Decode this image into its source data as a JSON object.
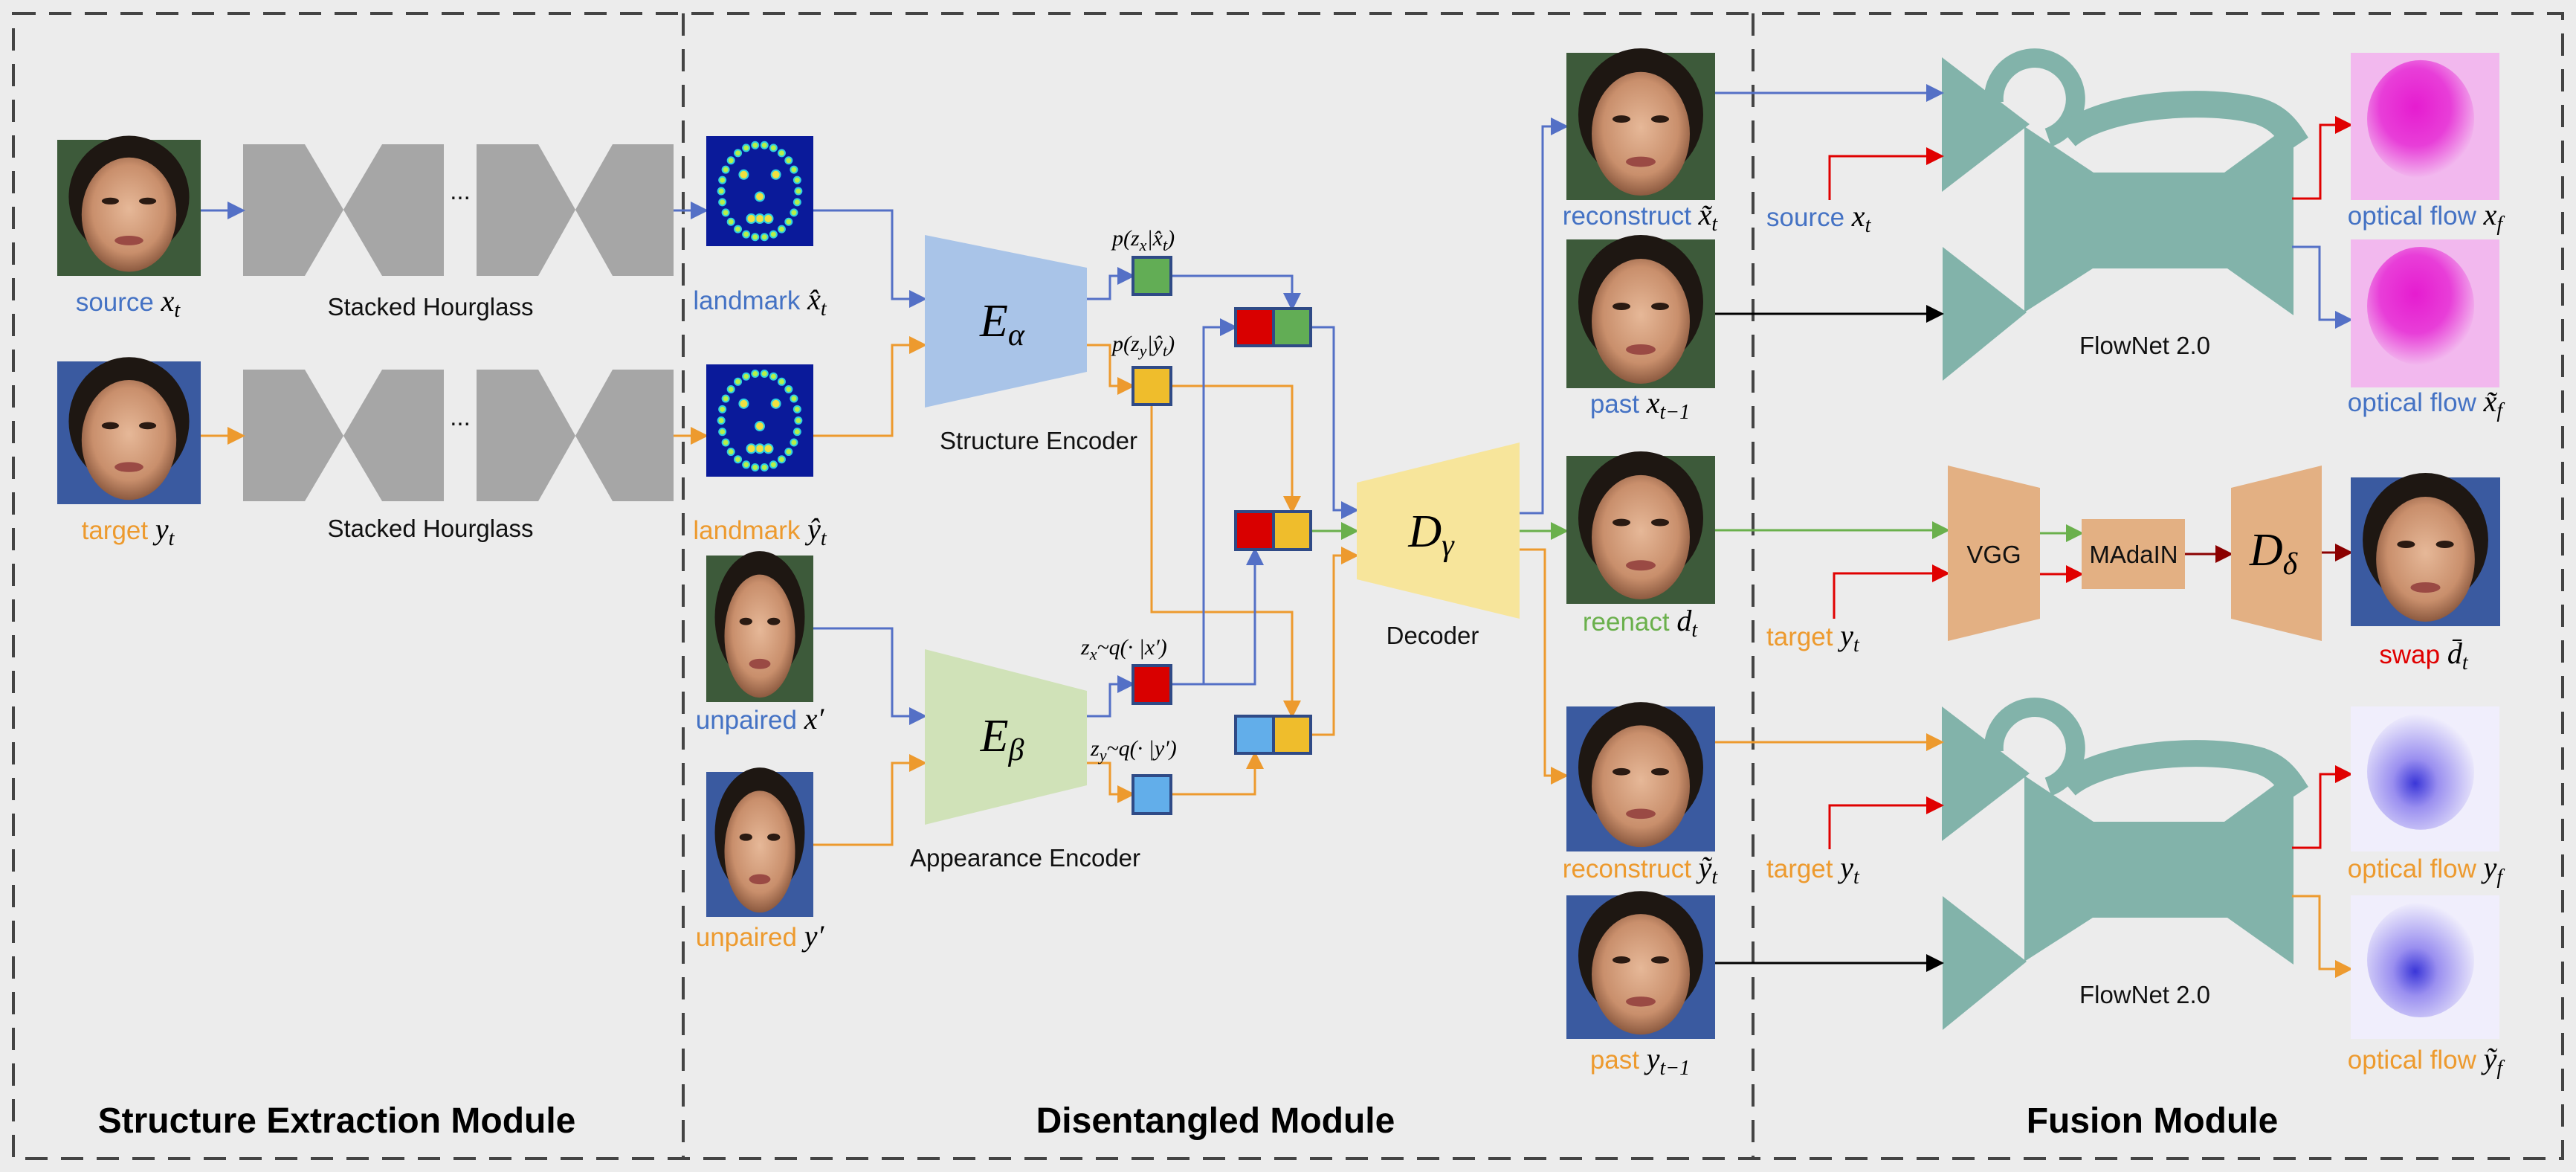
{
  "colors": {
    "blue": "#4472c4",
    "orange": "#ed9a2e",
    "green": "#6ab04c",
    "red": "#e00000",
    "flownet": "#82b3aa",
    "vgg": "#e3b083",
    "encoder_alpha": "#a9c4e8",
    "encoder_beta": "#d0e2b8",
    "decoder": "#f7e59b",
    "background": "#ececec"
  },
  "sections": {
    "structure": "Structure Extraction Module",
    "disentangled": "Disentangled Module",
    "fusion": "Fusion Module"
  },
  "structure": {
    "source": {
      "word": "source",
      "var": "x",
      "sub": "t"
    },
    "target": {
      "word": "target",
      "var": "y",
      "sub": "t"
    },
    "hourglass_label": "Stacked Hourglass",
    "ellipsis": "..."
  },
  "disentangled": {
    "landmark_x": {
      "word": "landmark",
      "var": "x̂",
      "sub": "t"
    },
    "landmark_y": {
      "word": "landmark",
      "var": "ŷ",
      "sub": "t"
    },
    "unpaired_x": {
      "word": "unpaired",
      "var": "x′"
    },
    "unpaired_y": {
      "word": "unpaired",
      "var": "y′"
    },
    "e_alpha": {
      "var": "E",
      "sub": "α"
    },
    "e_beta": {
      "var": "E",
      "sub": "β"
    },
    "d_gamma": {
      "var": "D",
      "sub": "γ"
    },
    "structure_encoder": "Structure Encoder",
    "appearance_encoder": "Appearance Encoder",
    "decoder": "Decoder",
    "p_zx": {
      "a": "p(z",
      "s1": "x",
      "b": "|x̂",
      "s2": "t",
      "c": ")"
    },
    "p_zy": {
      "a": "p(z",
      "s1": "y",
      "b": "|ŷ",
      "s2": "t",
      "c": ")"
    },
    "q_zx": {
      "a": "z",
      "s1": "x",
      "b": "~q(· |x′)"
    },
    "q_zy": {
      "a": "z",
      "s1": "y",
      "b": "~q(· |y′)"
    }
  },
  "middle_outputs": {
    "reconstruct_x": {
      "word": "reconstruct",
      "var": "x̃",
      "sub": "t"
    },
    "past_x": {
      "word": "past",
      "var": "x",
      "sub": "t−1"
    },
    "reenact": {
      "word": "reenact",
      "var": "d",
      "sub": "t"
    },
    "reconstruct_y": {
      "word": "reconstruct",
      "var": "ỹ",
      "sub": "t"
    },
    "past_y": {
      "word": "past",
      "var": "y",
      "sub": "t−1"
    }
  },
  "fusion": {
    "source": {
      "word": "source",
      "var": "x",
      "sub": "t"
    },
    "target_mid": {
      "word": "target",
      "var": "y",
      "sub": "t"
    },
    "target_low": {
      "word": "target",
      "var": "y",
      "sub": "t"
    },
    "flownet_label": "FlowNet 2.0",
    "vgg": "VGG",
    "madain": "MAdaIN",
    "d_delta": {
      "var": "D",
      "sub": "δ"
    },
    "flow_x": {
      "word": "optical flow",
      "var": "x",
      "sub": "f"
    },
    "flow_xt": {
      "word": "optical flow",
      "var": "x̃",
      "sub": "f"
    },
    "flow_y": {
      "word": "optical flow",
      "var": "y",
      "sub": "f"
    },
    "flow_yt": {
      "word": "optical flow",
      "var": "ỹ",
      "sub": "f"
    },
    "swap": {
      "word": "swap",
      "var": "d̄",
      "sub": "t"
    }
  }
}
